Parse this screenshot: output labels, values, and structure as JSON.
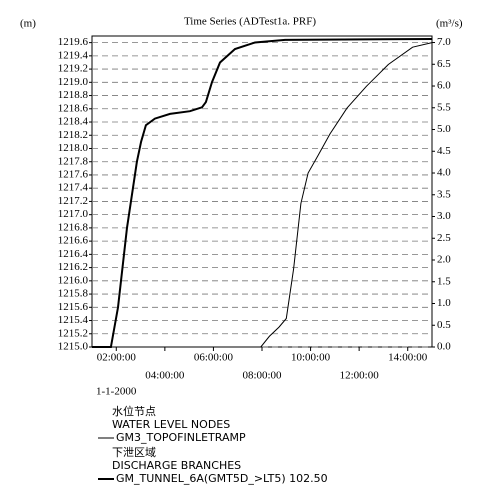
{
  "chart_data": {
    "type": "line",
    "title": "Time Series (ADTest1a. PRF)",
    "y_label": "(m)",
    "y2_label": "(m³/s)",
    "date_label": "1-1-2000",
    "xlim": [
      1.0,
      15.0
    ],
    "xticks": [
      {
        "value": 2,
        "label": "02:00:00"
      },
      {
        "value": 4,
        "label": "04:00:00"
      },
      {
        "value": 6,
        "label": "06:00:00"
      },
      {
        "value": 8,
        "label": "08:00:00"
      },
      {
        "value": 10,
        "label": "10:00:00"
      },
      {
        "value": 12,
        "label": "12:00:00"
      },
      {
        "value": 14,
        "label": "14:00:00"
      }
    ],
    "ylim": [
      1215.0,
      1219.7
    ],
    "yticks": [
      {
        "value": 1215.0,
        "label": "1215.0"
      },
      1215.2,
      1215.4,
      1215.6,
      1215.8,
      {
        "value": 1216.0,
        "label": "1216.0"
      },
      1216.2,
      1216.4,
      1216.6,
      1216.8,
      {
        "value": 1217.0,
        "label": "1217.0"
      },
      1217.2,
      1217.4,
      1217.6,
      1217.8,
      {
        "value": 1218.0,
        "label": "1218.0"
      },
      1218.2,
      1218.4,
      1218.6,
      1218.8,
      {
        "value": 1219.0,
        "label": "1219.0"
      },
      1219.2,
      1219.4,
      1219.6
    ],
    "y2lim": [
      0,
      7.15
    ],
    "y2ticks": [
      {
        "value": 0,
        "label": "0.0"
      },
      0.5,
      {
        "value": 1,
        "label": "1.0"
      },
      1.5,
      {
        "value": 2,
        "label": "2.0"
      },
      2.5,
      {
        "value": 3,
        "label": "3.0"
      },
      3.5,
      {
        "value": 4,
        "label": "4.0"
      },
      4.5,
      {
        "value": 5,
        "label": "5.0"
      },
      5.5,
      {
        "value": 6,
        "label": "6.0"
      },
      6.5,
      {
        "value": 7,
        "label": "7.0"
      }
    ],
    "grid": true,
    "series": [
      {
        "name": "GM3_TOPOFINLETRAMP",
        "group": [
          "水位节点",
          "WATER LEVEL NODES"
        ],
        "color": "#000000",
        "width": 1,
        "x": [
          1.0,
          7.95,
          8.3,
          8.7,
          9.0,
          9.3,
          9.6,
          9.9,
          10.3,
          10.8,
          11.5,
          12.3,
          13.2,
          14.2,
          15.0
        ],
        "values": [
          1215.0,
          1215.0,
          1215.16,
          1215.3,
          1215.43,
          1216.18,
          1217.17,
          1217.63,
          1217.89,
          1218.22,
          1218.61,
          1218.94,
          1219.27,
          1219.53,
          1219.6
        ]
      },
      {
        "name": "GM_TUNNEL_6A(GMT5D_>LT5) 102.50",
        "group": [
          "下泄区域",
          "DISCHARGE BRANCHES"
        ],
        "color": "#000000",
        "width": 2,
        "axis": "y2",
        "x": [
          1.0,
          1.78,
          2.07,
          2.44,
          2.85,
          3.02,
          3.22,
          3.59,
          4.21,
          5.03,
          5.53,
          5.69,
          5.94,
          6.27,
          6.89,
          7.71,
          8.95,
          15.0
        ],
        "values": [
          0,
          0,
          0.91,
          2.74,
          4.26,
          4.72,
          5.1,
          5.25,
          5.36,
          5.42,
          5.51,
          5.63,
          6.09,
          6.54,
          6.85,
          7.0,
          7.06,
          7.08
        ]
      }
    ]
  }
}
